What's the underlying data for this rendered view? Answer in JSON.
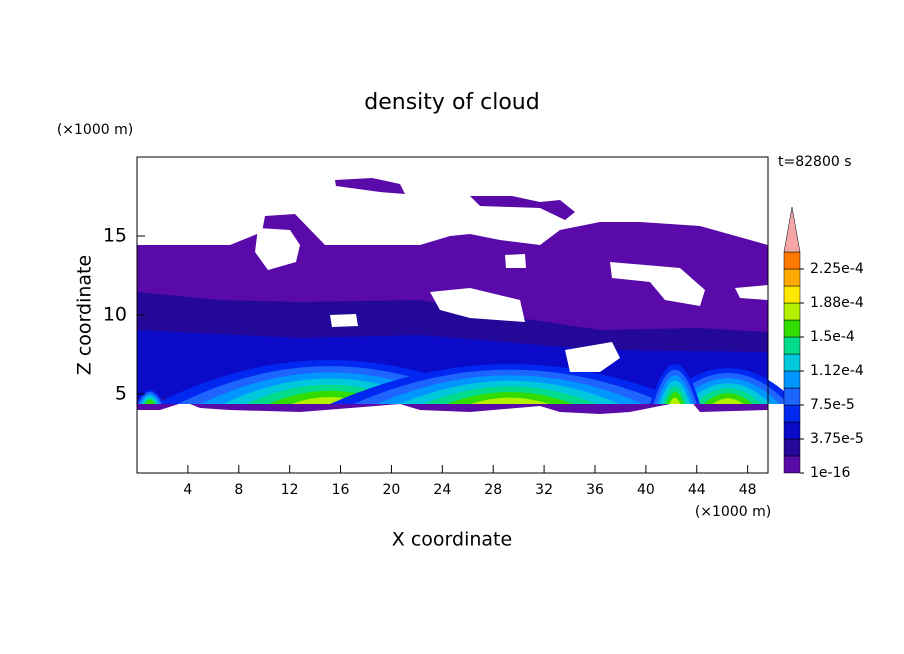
{
  "chart_data": {
    "type": "contour",
    "title": "density of cloud",
    "annotation": "t=82800 s",
    "x_label": "X coordinate",
    "y_label": "Z coordinate",
    "x_unit": "(×1000 m)",
    "y_unit": "(×1000 m)",
    "xlim": [
      0,
      49.6
    ],
    "xticks": [
      4,
      8,
      12,
      16,
      20,
      24,
      28,
      32,
      36,
      40,
      44,
      48
    ],
    "ylim": [
      0,
      20
    ],
    "yticks": [
      5,
      10,
      15
    ],
    "colorbar": {
      "levels": [
        1e-16,
        1.875e-05,
        3.75e-05,
        5.625e-05,
        7.5e-05,
        9.375e-05,
        0.0001125,
        0.00013125,
        0.00015,
        0.00016875,
        0.0001875,
        0.00020625,
        0.000225,
        0.00024375
      ],
      "colors": [
        "#5a0aa8",
        "#23089a",
        "#0a0ac8",
        "#0028f0",
        "#1e64ff",
        "#0096ff",
        "#00c8dc",
        "#00dc8c",
        "#32dc00",
        "#b4f000",
        "#ffe600",
        "#ffaa00",
        "#ff7800",
        "#ff3c00"
      ],
      "extend_color": "#f4a6a6",
      "ticks": [
        {
          "value": 1e-16,
          "label": "1e-16"
        },
        {
          "value": 3.75e-05,
          "label": "3.75e-5"
        },
        {
          "value": 7.5e-05,
          "label": "7.5e-5"
        },
        {
          "value": 0.0001125,
          "label": "1.12e-4"
        },
        {
          "value": 0.00015,
          "label": "1.5e-4"
        },
        {
          "value": 0.0001875,
          "label": "1.88e-4"
        },
        {
          "value": 0.000225,
          "label": "2.25e-4"
        }
      ]
    }
  }
}
